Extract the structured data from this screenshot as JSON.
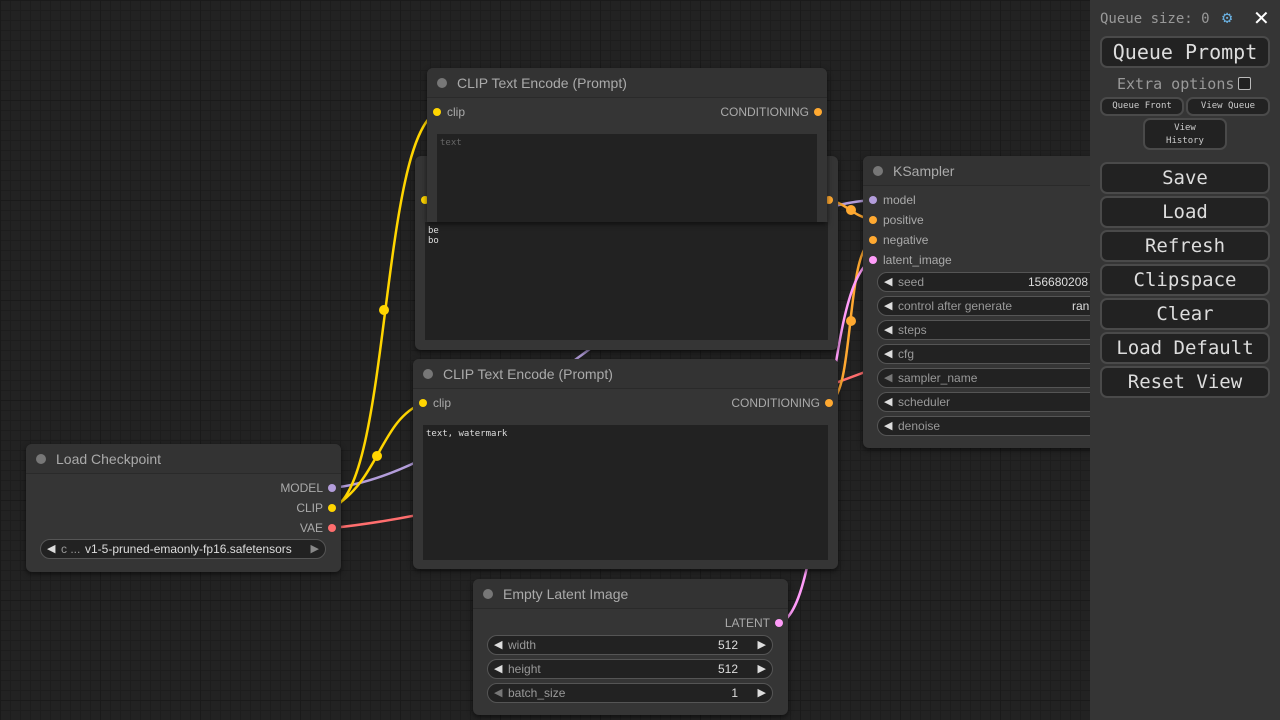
{
  "colors": {
    "clip": "#ffd500",
    "model": "#b39ddb",
    "vae": "#ff6e6e",
    "conditioning": "#ffa931",
    "latent": "#ff9cf9"
  },
  "nodes": {
    "clip_top": {
      "title": "CLIP Text Encode (Prompt)",
      "input": "clip",
      "output": "CONDITIONING",
      "text_placeholder": "text"
    },
    "clip_hidden": {
      "text_line1": "be",
      "text_line2": "bo"
    },
    "clip_bottom": {
      "title": "CLIP Text Encode (Prompt)",
      "input": "clip",
      "output": "CONDITIONING",
      "text": "text, watermark"
    },
    "checkpoint": {
      "title": "Load Checkpoint",
      "outputs": [
        "MODEL",
        "CLIP",
        "VAE"
      ],
      "widget_label": "c ...",
      "widget_value": "v1-5-pruned-emaonly-fp16.safetensors"
    },
    "latent": {
      "title": "Empty Latent Image",
      "output": "LATENT",
      "widgets": [
        {
          "name": "width",
          "value": "512"
        },
        {
          "name": "height",
          "value": "512"
        },
        {
          "name": "batch_size",
          "value": "1"
        }
      ]
    },
    "ksampler": {
      "title": "KSampler",
      "inputs": [
        "model",
        "positive",
        "negative",
        "latent_image"
      ],
      "widgets": [
        {
          "name": "seed",
          "value": "156680208"
        },
        {
          "name": "control after generate",
          "value": "ran"
        },
        {
          "name": "steps",
          "value": ""
        },
        {
          "name": "cfg",
          "value": ""
        },
        {
          "name": "sampler_name",
          "value": ""
        },
        {
          "name": "scheduler",
          "value": ""
        },
        {
          "name": "denoise",
          "value": ""
        }
      ]
    }
  },
  "sidebar": {
    "queue_size": "Queue size: 0",
    "queue_prompt": "Queue Prompt",
    "extra_options": "Extra options",
    "queue_front": "Queue Front",
    "view_queue": "View Queue",
    "view_history": "View History",
    "buttons": [
      "Save",
      "Load",
      "Refresh",
      "Clipspace",
      "Clear",
      "Load Default",
      "Reset View"
    ]
  }
}
